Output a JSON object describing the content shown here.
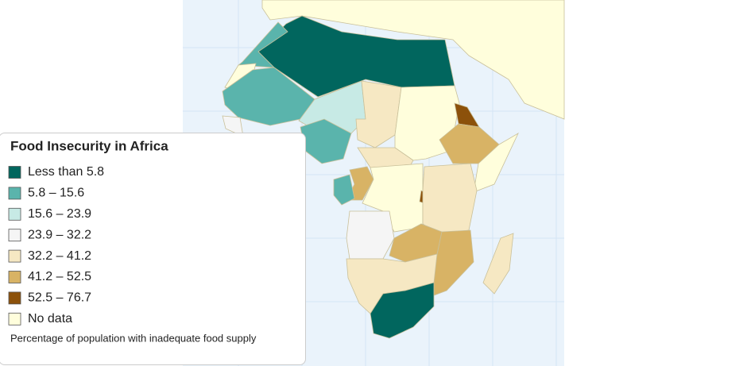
{
  "legend": {
    "title": "Food Insecurity in Africa",
    "items": [
      {
        "label": "Less than 5.8",
        "color": "#01665e"
      },
      {
        "label": "5.8 – 15.6",
        "color": "#5ab4ac"
      },
      {
        "label": "15.6 – 23.9",
        "color": "#c7eae5"
      },
      {
        "label": "23.9 – 32.2",
        "color": "#f5f5f5"
      },
      {
        "label": "32.2 – 41.2",
        "color": "#f6e8c3"
      },
      {
        "label": "41.2 – 52.5",
        "color": "#d8b365"
      },
      {
        "label": "52.5 – 76.7",
        "color": "#8c510a"
      },
      {
        "label": "No data",
        "color": "#fffedc"
      }
    ],
    "note": "Percentage of population with inadequate food supply"
  }
}
